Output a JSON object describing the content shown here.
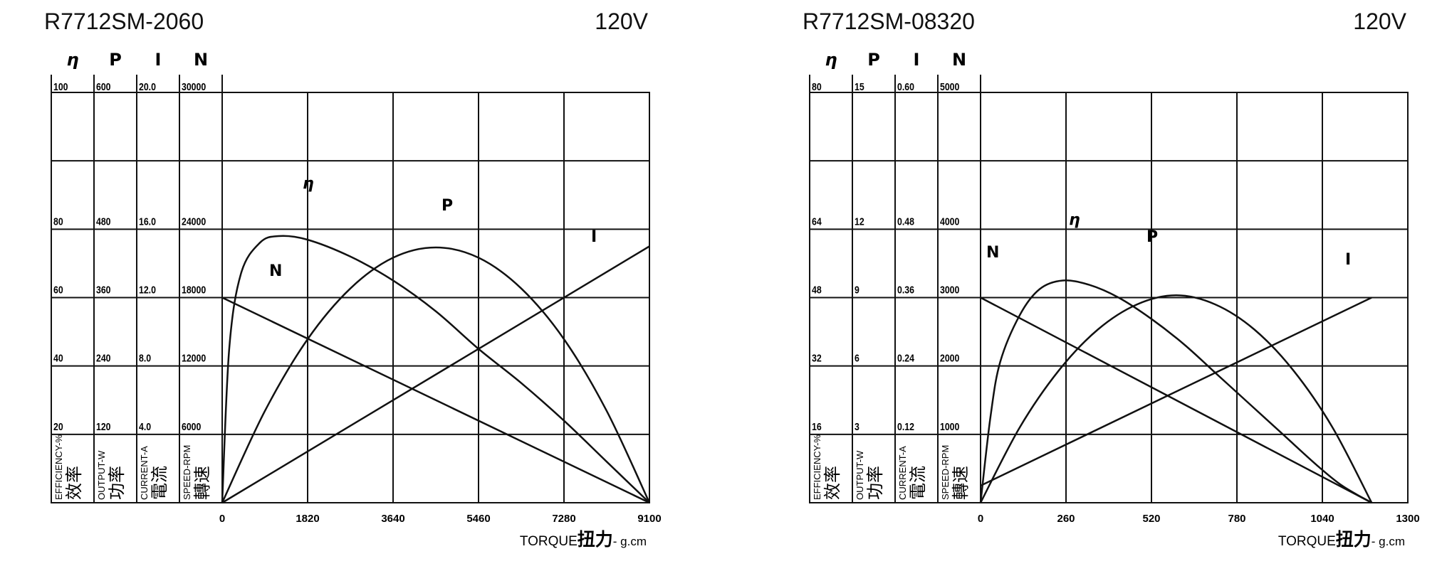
{
  "chart_data": [
    {
      "type": "line",
      "title": "R7712SM-2060",
      "voltage": "120V",
      "xlabel": {
        "en": "TORQUE",
        "cn": "扭力",
        "unit": "- g.cm"
      },
      "x_ticks": [
        "0",
        "1820",
        "3640",
        "5460",
        "7280",
        "9100"
      ],
      "xlim": [
        0,
        9100
      ],
      "axes": [
        {
          "symbol": "η",
          "label": "EFFICIENCY-%",
          "cn": "效率",
          "ticks": [
            "20",
            "40",
            "60",
            "80",
            "100"
          ],
          "range": [
            0,
            100
          ]
        },
        {
          "symbol": "P",
          "label": "OUTPUT-W",
          "cn": "功率",
          "ticks": [
            "120",
            "240",
            "360",
            "480",
            "600"
          ],
          "range": [
            0,
            600
          ]
        },
        {
          "symbol": "I",
          "label": "CURRENT-A",
          "cn": "電流",
          "ticks": [
            "4.0",
            "8.0",
            "12.0",
            "16.0",
            "20.0"
          ],
          "range": [
            0,
            20
          ]
        },
        {
          "symbol": "N",
          "label": "SPEED-RPM",
          "cn": "轉速",
          "ticks": [
            "6000",
            "12000",
            "18000",
            "24000",
            "30000"
          ],
          "range": [
            0,
            30000
          ]
        }
      ],
      "series": [
        {
          "name": "η",
          "axis": 0,
          "x": [
            0,
            150,
            400,
            800,
            1200,
            1800,
            2730,
            3640,
            4550,
            5460,
            6370,
            7280,
            8190,
            9100
          ],
          "y": [
            0,
            45,
            67,
            76,
            78,
            77,
            72,
            65,
            56,
            45,
            35,
            24,
            12,
            0
          ]
        },
        {
          "name": "P",
          "axis": 1,
          "x": [
            0,
            910,
            1820,
            2730,
            3640,
            4550,
            5460,
            6370,
            7280,
            8190,
            9100
          ],
          "y": [
            0,
            161,
            287,
            376,
            430,
            448,
            430,
            376,
            287,
            161,
            0
          ]
        },
        {
          "name": "I",
          "axis": 2,
          "x": [
            0,
            9100
          ],
          "y": [
            0,
            15.0
          ]
        },
        {
          "name": "N",
          "axis": 3,
          "x": [
            0,
            9100
          ],
          "y": [
            18000,
            0
          ]
        }
      ]
    },
    {
      "type": "line",
      "title": "R7712SM-08320",
      "voltage": "120V",
      "xlabel": {
        "en": "TORQUE",
        "cn": "扭力",
        "unit": "- g.cm"
      },
      "x_ticks": [
        "0",
        "260",
        "520",
        "780",
        "1040",
        "1300"
      ],
      "xlim": [
        0,
        1300
      ],
      "axes": [
        {
          "symbol": "η",
          "label": "EFFICIENCY-%",
          "cn": "效率",
          "ticks": [
            "16",
            "32",
            "48",
            "64",
            "80"
          ],
          "range": [
            0,
            80
          ]
        },
        {
          "symbol": "P",
          "label": "OUTPUT-W",
          "cn": "功率",
          "ticks": [
            "3",
            "6",
            "9",
            "12",
            "15"
          ],
          "range": [
            0,
            15
          ]
        },
        {
          "symbol": "I",
          "label": "CURRENT-A",
          "cn": "電流",
          "ticks": [
            "0.12",
            "0.24",
            "0.36",
            "0.48",
            "0.60"
          ],
          "range": [
            0,
            0.6
          ]
        },
        {
          "symbol": "N",
          "label": "SPEED-RPM",
          "cn": "轉速",
          "ticks": [
            "1000",
            "2000",
            "3000",
            "4000",
            "5000"
          ],
          "range": [
            0,
            5000
          ]
        }
      ],
      "series": [
        {
          "name": "η",
          "axis": 0,
          "x": [
            0,
            30,
            60,
            120,
            180,
            250,
            330,
            420,
            520,
            620,
            720,
            820,
            920,
            1020,
            1100,
            1190
          ],
          "y": [
            0,
            20,
            33,
            44,
            50,
            52,
            51,
            48,
            43,
            37,
            30,
            23,
            16,
            9,
            4,
            0
          ]
        },
        {
          "name": "P",
          "axis": 1,
          "x": [
            0,
            119,
            238,
            357,
            476,
            595,
            714,
            833,
            952,
            1071,
            1190
          ],
          "y": [
            0,
            3.3,
            5.8,
            7.6,
            8.7,
            9.1,
            8.7,
            7.6,
            5.8,
            3.3,
            0
          ]
        },
        {
          "name": "I",
          "axis": 2,
          "x": [
            0,
            1190
          ],
          "y": [
            0.03,
            0.36
          ]
        },
        {
          "name": "N",
          "axis": 3,
          "x": [
            0,
            1190
          ],
          "y": [
            3000,
            0
          ]
        }
      ]
    }
  ]
}
